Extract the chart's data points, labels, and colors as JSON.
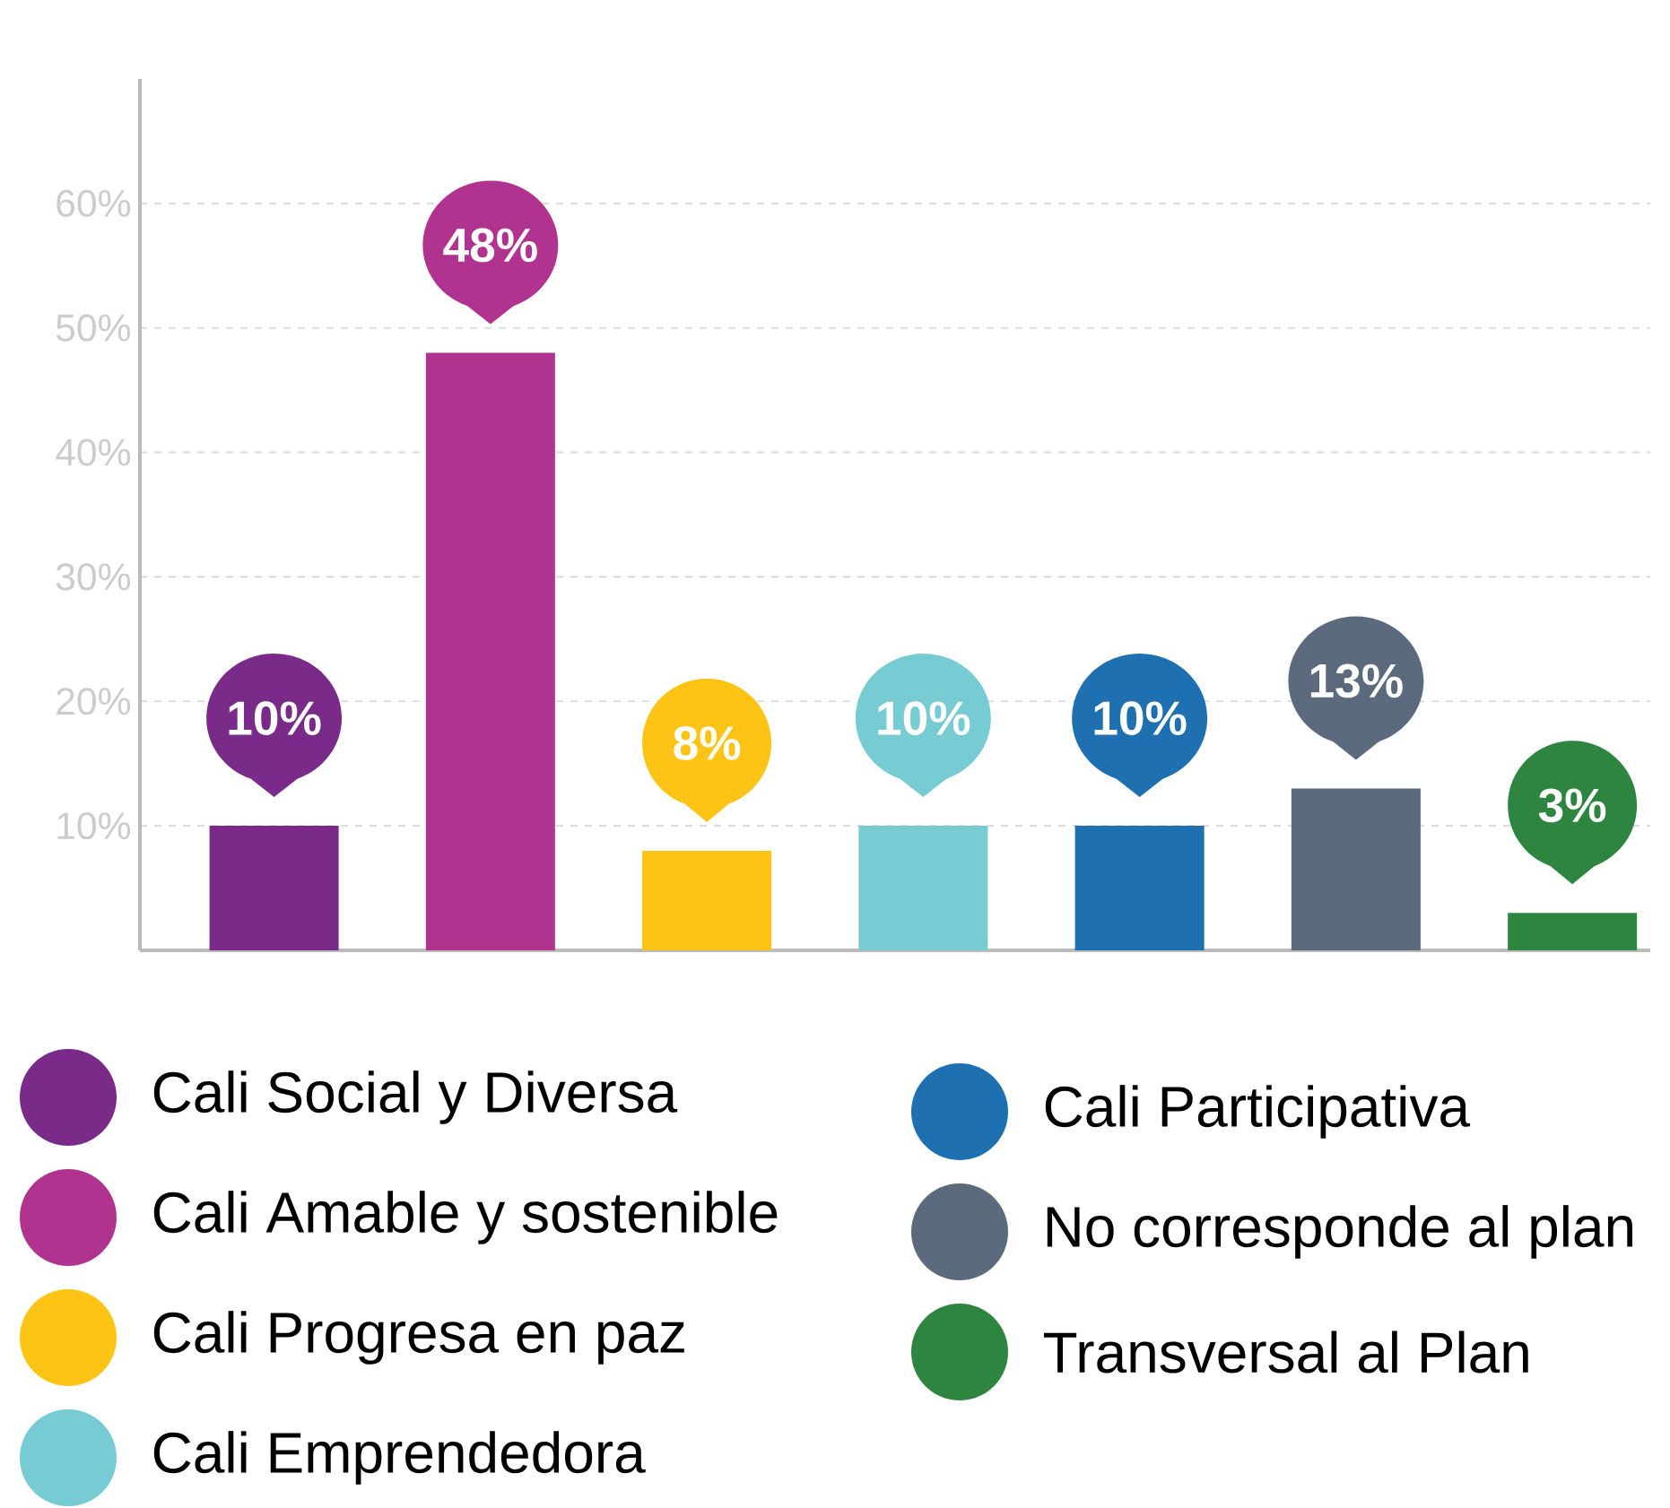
{
  "chart_data": {
    "type": "bar",
    "categories": [
      null,
      null,
      null,
      null,
      null,
      null,
      null
    ],
    "series": [
      {
        "name": "Cali Social y Diversa",
        "color": "#7a2a88",
        "values": [
          10,
          null,
          null,
          null,
          null,
          null,
          null
        ],
        "value_labels": [
          "10%",
          null,
          null,
          null,
          null,
          null,
          null
        ]
      },
      {
        "name": "Cali Amable y sostenible",
        "color": "#b0338f",
        "values": [
          null,
          48,
          null,
          null,
          null,
          null,
          null
        ],
        "value_labels": [
          null,
          "48%",
          null,
          null,
          null,
          null,
          null
        ]
      },
      {
        "name": "Cali Progresa en paz",
        "color": "#fdc416",
        "values": [
          null,
          null,
          8,
          null,
          null,
          null,
          null
        ],
        "value_labels": [
          null,
          null,
          "8%",
          null,
          null,
          null,
          null
        ]
      },
      {
        "name": "Cali Emprendedora",
        "color": "#77ccd3",
        "values": [
          null,
          null,
          null,
          10,
          null,
          null,
          null
        ],
        "value_labels": [
          null,
          null,
          null,
          "10%",
          null,
          null,
          null
        ]
      },
      {
        "name": "Cali Participativa",
        "color": "#1f70b1",
        "values": [
          null,
          null,
          null,
          null,
          10,
          null,
          null
        ],
        "value_labels": [
          null,
          null,
          null,
          null,
          "10%",
          null,
          null
        ]
      },
      {
        "name": "No corresponde al plan",
        "color": "#5b6a7c",
        "values": [
          null,
          null,
          null,
          null,
          null,
          13,
          null
        ],
        "value_labels": [
          null,
          null,
          null,
          null,
          null,
          "13%",
          null
        ]
      },
      {
        "name": "Transversal al Plan",
        "color": "#2e8540",
        "values": [
          null,
          null,
          null,
          null,
          null,
          null,
          3
        ],
        "value_labels": [
          null,
          null,
          null,
          null,
          null,
          null,
          "3%"
        ]
      }
    ],
    "ylim": [
      0,
      70
    ],
    "yticks": [
      {
        "value": 10,
        "label": "10%"
      },
      {
        "value": 20,
        "label": "20%"
      },
      {
        "value": 30,
        "label": "30%"
      },
      {
        "value": 40,
        "label": "40%"
      },
      {
        "value": 50,
        "label": "50%"
      },
      {
        "value": 60,
        "label": "60%"
      }
    ],
    "grid": "y",
    "legend": "bottom"
  }
}
